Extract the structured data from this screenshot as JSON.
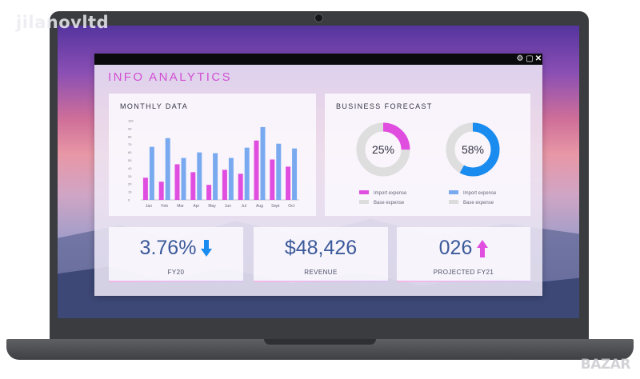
{
  "watermark": {
    "text": "jilanovltd",
    "logo_text": "BAZAR"
  },
  "app": {
    "title": "INFO ANALYTICS",
    "window_controls": [
      "⚙",
      "▢",
      "✕"
    ]
  },
  "monthly_data": {
    "title": "MONTHLY DATA",
    "chart_data": {
      "type": "bar",
      "categories": [
        "Jan",
        "Feb",
        "Mar",
        "Apr",
        "May",
        "Jun",
        "Jul",
        "Aug",
        "Sept",
        "Oct"
      ],
      "ylim": [
        0,
        100
      ],
      "yticks": [
        "0",
        "10",
        "20",
        "30",
        "40",
        "50",
        "60",
        "70",
        "80",
        "90",
        "100"
      ],
      "series": [
        {
          "color": "#e04ee0",
          "values": [
            28,
            23,
            45,
            35,
            19,
            38,
            33,
            75,
            51,
            42
          ]
        },
        {
          "color": "#79aaf0",
          "values": [
            67,
            78,
            53,
            60,
            59,
            53,
            66,
            92,
            71,
            65
          ]
        }
      ]
    }
  },
  "business_forecast": {
    "title": "BUSINESS FORECAST",
    "donuts": [
      {
        "value_label": "25%",
        "value": 25,
        "color": "#e04ee0",
        "legend": [
          "Import expense",
          "Base expense"
        ]
      },
      {
        "value_label": "58%",
        "value": 58,
        "color": "#1a8cf0",
        "legend": [
          "Import expense",
          "Base expense"
        ]
      }
    ],
    "legend_colors": {
      "import_left": "#e04ee0",
      "import_right": "#79aaf0",
      "base": "#dcdcdc"
    }
  },
  "kpis": [
    {
      "value": "3.76%",
      "label": "FY20",
      "arrow": "down",
      "arrow_color": "#1a8cf0"
    },
    {
      "value": "$48,426",
      "label": "REVENUE"
    },
    {
      "value": "026",
      "label": "PROJECTED FY21",
      "arrow": "up",
      "arrow_color": "#e04ee0"
    }
  ]
}
